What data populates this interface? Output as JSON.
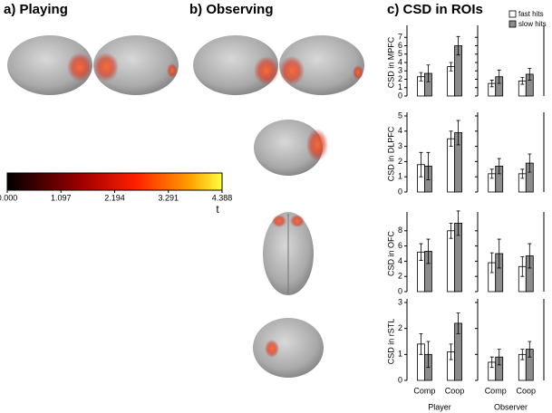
{
  "panels": {
    "a": "a) Playing",
    "b": "b) Observing",
    "c": "c) CSD in ROIs"
  },
  "colorbar": {
    "lim": [
      0,
      4.388
    ],
    "ticks": [
      {
        "value": 0,
        "label": "0.000"
      },
      1.097,
      2.194,
      3.291,
      4.388
    ],
    "label": "t"
  },
  "chart_data": {
    "type": "grouped_bar_grid",
    "legend": [
      {
        "name": "fast hits",
        "color": "#ffffff"
      },
      {
        "name": "slow hits",
        "color": "#8c8c8c"
      }
    ],
    "categories": [
      "Comp",
      "Coop"
    ],
    "groups": [
      "Player",
      "Observer"
    ],
    "rows": [
      {
        "ylabel": "CSD in MPFC",
        "ylim": [
          0,
          8
        ],
        "yticks": [
          0,
          1,
          2,
          3,
          4,
          5,
          6,
          7
        ],
        "panels": [
          {
            "series": [
              {
                "values": [
                  2.3,
                  3.5
                ],
                "errors": [
                  0.5,
                  0.5
                ]
              },
              {
                "values": [
                  2.7,
                  6.0
                ],
                "errors": [
                  1.0,
                  1.1
                ]
              }
            ]
          },
          {
            "series": [
              {
                "values": [
                  1.5,
                  1.8
                ],
                "errors": [
                  0.4,
                  0.4
                ]
              },
              {
                "values": [
                  2.3,
                  2.6
                ],
                "errors": [
                  0.8,
                  0.7
                ]
              }
            ]
          }
        ]
      },
      {
        "ylabel": "CSD in DLPFC",
        "ylim": [
          0,
          5
        ],
        "yticks": [
          0,
          1,
          2,
          3,
          4,
          5
        ],
        "panels": [
          {
            "series": [
              {
                "values": [
                  1.8,
                  3.5
                ],
                "errors": [
                  0.8,
                  0.5
                ]
              },
              {
                "values": [
                  1.7,
                  3.9
                ],
                "errors": [
                  0.9,
                  0.8
                ]
              }
            ]
          },
          {
            "series": [
              {
                "values": [
                  1.2,
                  1.2
                ],
                "errors": [
                  0.3,
                  0.3
                ]
              },
              {
                "values": [
                  1.7,
                  1.9
                ],
                "errors": [
                  0.5,
                  0.6
                ]
              }
            ]
          }
        ]
      },
      {
        "ylabel": "CSD in OFC",
        "ylim": [
          0,
          10
        ],
        "yticks": [
          0,
          2,
          4,
          6,
          8
        ],
        "panels": [
          {
            "series": [
              {
                "values": [
                  5.2,
                  8.0
                ],
                "errors": [
                  1.1,
                  1.0
                ]
              },
              {
                "values": [
                  5.3,
                  9.0
                ],
                "errors": [
                  1.6,
                  1.6
                ]
              }
            ]
          },
          {
            "series": [
              {
                "values": [
                  3.8,
                  3.3
                ],
                "errors": [
                  1.3,
                  1.3
                ]
              },
              {
                "values": [
                  5.0,
                  4.7
                ],
                "errors": [
                  1.9,
                  1.6
                ]
              }
            ]
          }
        ]
      },
      {
        "ylabel": "CSD in rSTL",
        "ylim": [
          0,
          3
        ],
        "yticks": [
          0,
          1,
          2,
          3
        ],
        "panels": [
          {
            "series": [
              {
                "values": [
                  1.4,
                  1.1
                ],
                "errors": [
                  0.4,
                  0.3
                ]
              },
              {
                "values": [
                  1.0,
                  2.2
                ],
                "errors": [
                  0.5,
                  0.4
                ]
              }
            ]
          },
          {
            "series": [
              {
                "values": [
                  0.7,
                  1.0
                ],
                "errors": [
                  0.2,
                  0.2
                ]
              },
              {
                "values": [
                  0.9,
                  1.2
                ],
                "errors": [
                  0.3,
                  0.3
                ]
              }
            ]
          }
        ]
      }
    ]
  }
}
